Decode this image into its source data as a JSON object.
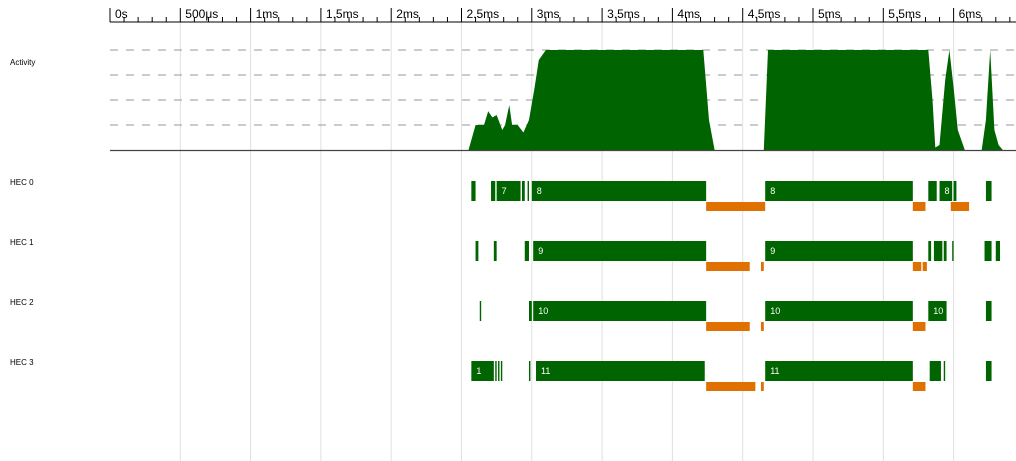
{
  "chart_data": {
    "type": "timeline",
    "x_unit": "ms",
    "xlim": [
      0,
      6.35
    ],
    "tick_labels": [
      "0s",
      "500μs",
      "1ms",
      "1.5ms",
      "2ms",
      "2.5ms",
      "3ms",
      "3.5ms",
      "4ms",
      "4.5ms",
      "5ms",
      "5.5ms",
      "6ms"
    ],
    "tick_values": [
      0,
      0.5,
      1,
      1.5,
      2,
      2.5,
      3,
      3.5,
      4,
      4.5,
      5,
      5.5,
      6
    ],
    "minor_tick_step": 0.1,
    "grid": true,
    "colors": {
      "run": "#006400",
      "gc": "#e07000",
      "grid": "#e0e0e0"
    },
    "activity": {
      "label": "Activity",
      "ymax": 4,
      "points": [
        [
          0,
          0
        ],
        [
          2.55,
          0
        ],
        [
          2.6,
          1
        ],
        [
          2.66,
          1
        ],
        [
          2.69,
          1.55
        ],
        [
          2.72,
          1.3
        ],
        [
          2.75,
          1.4
        ],
        [
          2.79,
          0.8
        ],
        [
          2.81,
          1.0
        ],
        [
          2.84,
          1.8
        ],
        [
          2.86,
          1.0
        ],
        [
          2.9,
          1.0
        ],
        [
          2.94,
          0.7
        ],
        [
          2.98,
          1.2
        ],
        [
          3.02,
          2.5
        ],
        [
          3.05,
          3.6
        ],
        [
          3.1,
          4
        ],
        [
          4.22,
          4
        ],
        [
          4.26,
          1.2
        ],
        [
          4.3,
          0
        ],
        [
          4.65,
          0
        ],
        [
          4.68,
          4
        ],
        [
          5.82,
          4
        ],
        [
          5.85,
          2.0
        ],
        [
          5.87,
          0.1
        ],
        [
          5.9,
          0.2
        ],
        [
          5.94,
          2.8
        ],
        [
          5.97,
          4
        ],
        [
          6.0,
          2.5
        ],
        [
          6.03,
          0.8
        ],
        [
          6.08,
          0
        ],
        [
          6.2,
          0
        ],
        [
          6.23,
          1.2
        ],
        [
          6.26,
          4
        ],
        [
          6.29,
          0.8
        ],
        [
          6.32,
          0.2
        ],
        [
          6.35,
          0
        ]
      ]
    },
    "rows": [
      {
        "label": "HEC 0",
        "runs": [
          {
            "start": 2.57,
            "end": 2.6,
            "text": ""
          },
          {
            "start": 2.71,
            "end": 2.74,
            "text": ""
          },
          {
            "start": 2.75,
            "end": 2.92,
            "text": "7"
          },
          {
            "start": 2.93,
            "end": 2.95,
            "text": ""
          },
          {
            "start": 2.97,
            "end": 2.98,
            "text": ""
          },
          {
            "start": 3.0,
            "end": 4.24,
            "text": "8"
          },
          {
            "start": 4.66,
            "end": 5.71,
            "text": "8"
          },
          {
            "start": 5.82,
            "end": 5.88,
            "text": ""
          },
          {
            "start": 5.9,
            "end": 5.99,
            "text": "8"
          },
          {
            "start": 6.0,
            "end": 6.02,
            "text": ""
          },
          {
            "start": 6.23,
            "end": 6.27,
            "text": ""
          }
        ],
        "gc": [
          {
            "start": 4.24,
            "end": 4.66
          },
          {
            "start": 5.71,
            "end": 5.8
          },
          {
            "start": 5.98,
            "end": 6.11
          }
        ]
      },
      {
        "label": "HEC 1",
        "runs": [
          {
            "start": 2.6,
            "end": 2.62,
            "text": ""
          },
          {
            "start": 2.73,
            "end": 2.75,
            "text": ""
          },
          {
            "start": 2.95,
            "end": 2.98,
            "text": ""
          },
          {
            "start": 3.01,
            "end": 4.24,
            "text": "9"
          },
          {
            "start": 4.66,
            "end": 5.71,
            "text": "9"
          },
          {
            "start": 5.82,
            "end": 5.84,
            "text": ""
          },
          {
            "start": 5.86,
            "end": 5.92,
            "text": ""
          },
          {
            "start": 5.93,
            "end": 5.95,
            "text": ""
          },
          {
            "start": 5.99,
            "end": 6.0,
            "text": ""
          },
          {
            "start": 6.22,
            "end": 6.27,
            "text": ""
          },
          {
            "start": 6.3,
            "end": 6.33,
            "text": ""
          }
        ],
        "gc": [
          {
            "start": 4.24,
            "end": 4.55
          },
          {
            "start": 4.63,
            "end": 4.65
          },
          {
            "start": 5.71,
            "end": 5.77
          },
          {
            "start": 5.78,
            "end": 5.81
          }
        ]
      },
      {
        "label": "HEC 2",
        "runs": [
          {
            "start": 2.63,
            "end": 2.64,
            "text": ""
          },
          {
            "start": 2.98,
            "end": 3.0,
            "text": ""
          },
          {
            "start": 3.01,
            "end": 4.24,
            "text": "10"
          },
          {
            "start": 4.66,
            "end": 5.71,
            "text": "10"
          },
          {
            "start": 5.82,
            "end": 5.95,
            "text": "10"
          },
          {
            "start": 6.23,
            "end": 6.27,
            "text": ""
          }
        ],
        "gc": [
          {
            "start": 4.24,
            "end": 4.55
          },
          {
            "start": 4.63,
            "end": 4.65
          },
          {
            "start": 5.71,
            "end": 5.8
          }
        ]
      },
      {
        "label": "HEC 3",
        "runs": [
          {
            "start": 2.57,
            "end": 2.73,
            "text": "1"
          },
          {
            "start": 2.74,
            "end": 2.75,
            "text": ""
          },
          {
            "start": 2.76,
            "end": 2.77,
            "text": ""
          },
          {
            "start": 2.78,
            "end": 2.79,
            "text": ""
          },
          {
            "start": 2.98,
            "end": 2.99,
            "text": ""
          },
          {
            "start": 3.03,
            "end": 4.23,
            "text": "11"
          },
          {
            "start": 4.66,
            "end": 5.71,
            "text": "11"
          },
          {
            "start": 5.83,
            "end": 5.91,
            "text": ""
          },
          {
            "start": 5.93,
            "end": 5.94,
            "text": ""
          },
          {
            "start": 6.23,
            "end": 6.27,
            "text": ""
          }
        ],
        "gc": [
          {
            "start": 4.24,
            "end": 4.59
          },
          {
            "start": 4.63,
            "end": 4.65
          },
          {
            "start": 5.71,
            "end": 5.8
          }
        ]
      }
    ]
  }
}
